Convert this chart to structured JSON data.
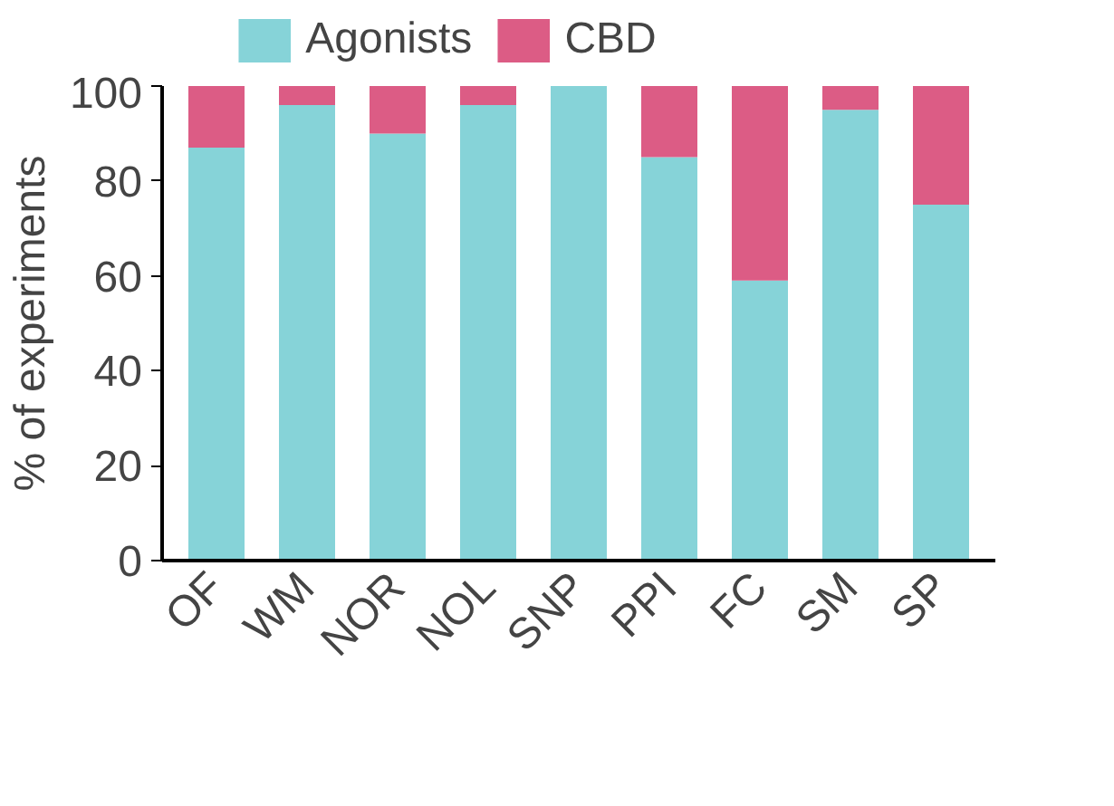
{
  "chart_data": {
    "type": "bar",
    "stacked": true,
    "ylabel": "% of experiments",
    "categories": [
      "OF",
      "WM",
      "NOR",
      "NOL",
      "SNP",
      "PPI",
      "FC",
      "SM",
      "SP"
    ],
    "series": [
      {
        "name": "Agonists",
        "color": "#86d3d8",
        "values": [
          87,
          96,
          90,
          96,
          100,
          85,
          59,
          95,
          75
        ]
      },
      {
        "name": "CBD",
        "color": "#dc5c85",
        "values": [
          13,
          4,
          10,
          4,
          0,
          15,
          41,
          5,
          25
        ]
      }
    ],
    "ylim": [
      0,
      100
    ],
    "yticks": [
      0,
      20,
      40,
      60,
      80,
      100
    ],
    "grid": false,
    "legend": "top"
  }
}
